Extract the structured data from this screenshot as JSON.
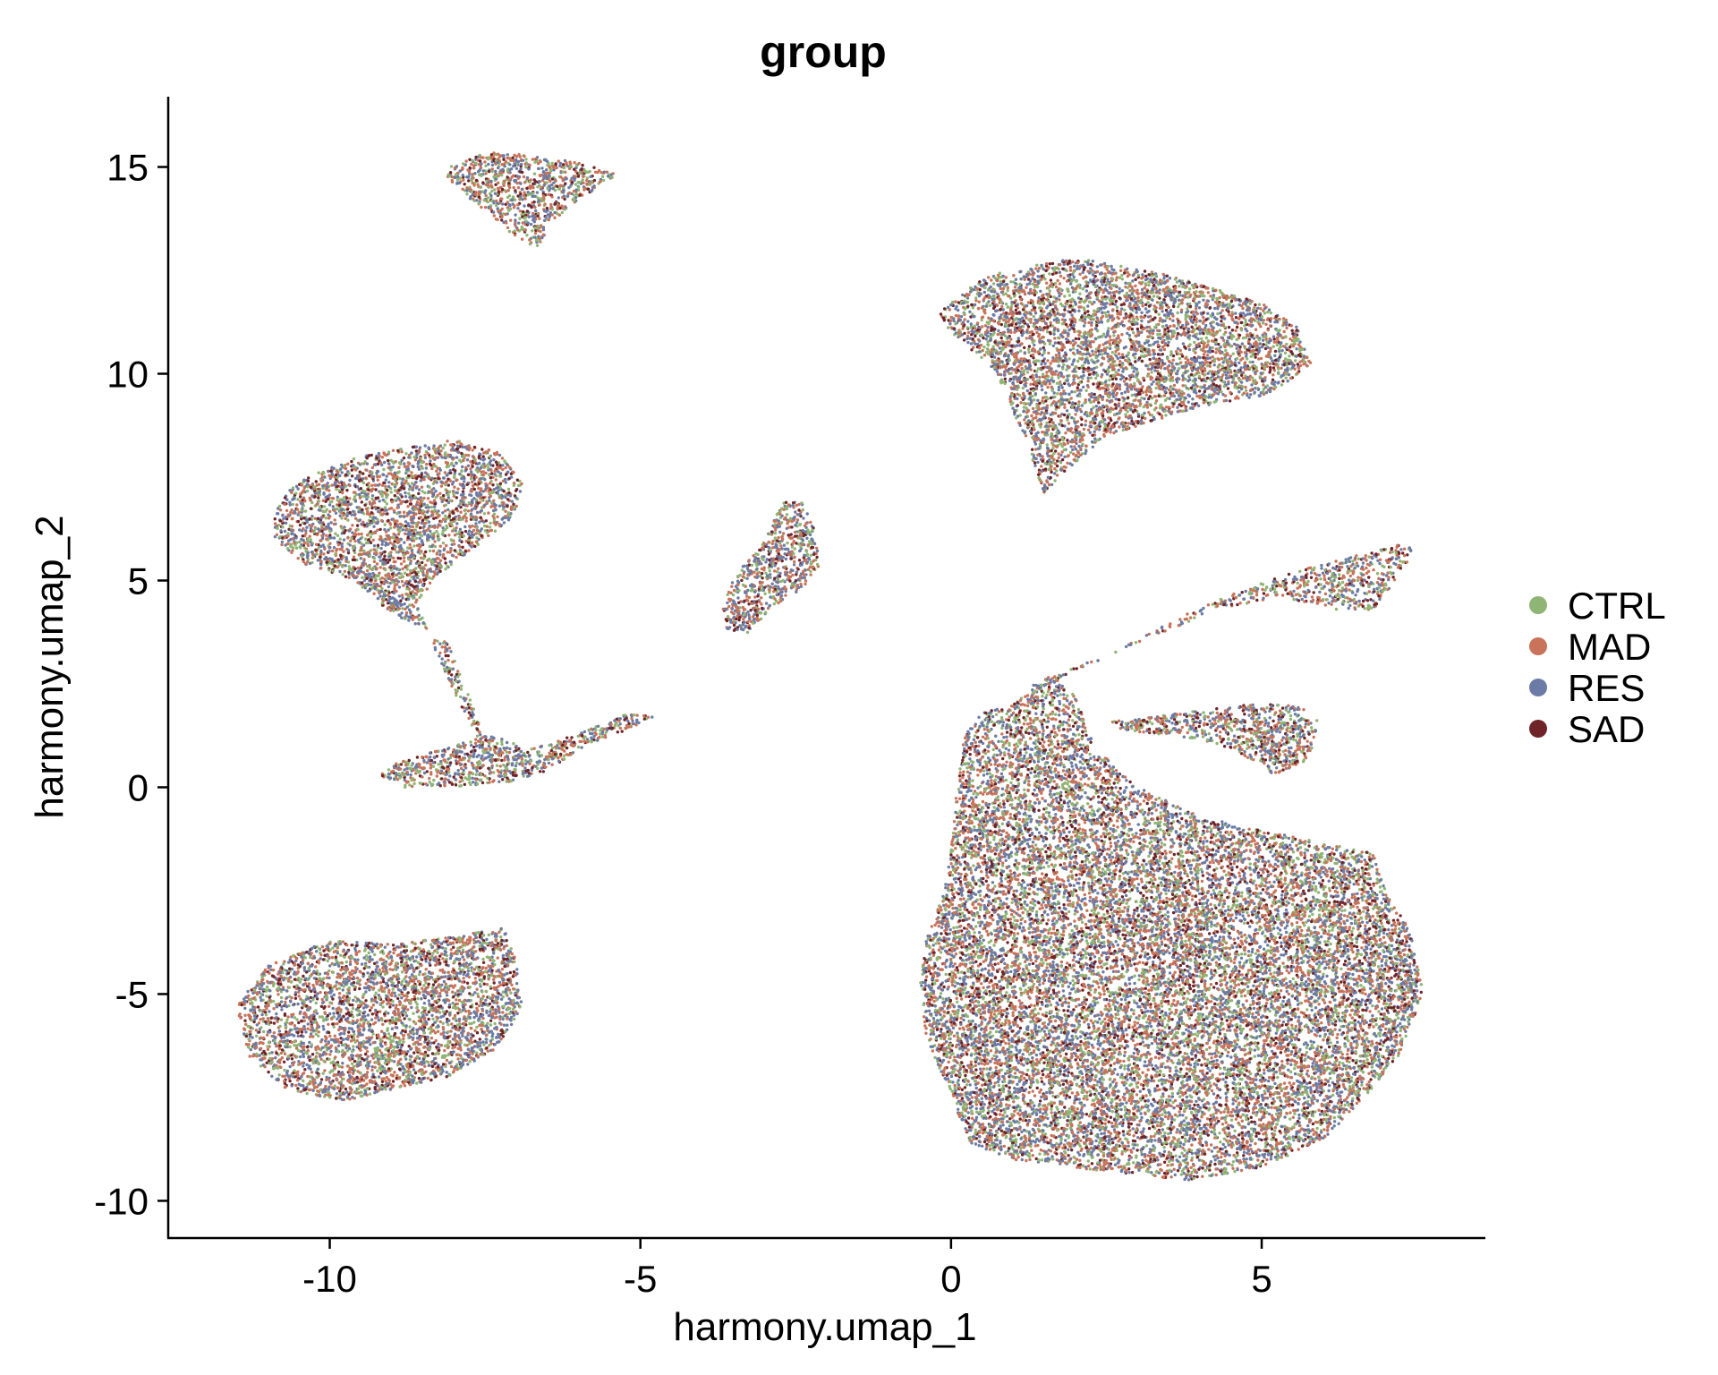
{
  "chart_data": {
    "type": "scatter",
    "title": "group",
    "xlabel": "harmony.umap_1",
    "ylabel": "harmony.umap_2",
    "xlim": [
      -12.6,
      8.6
    ],
    "ylim": [
      -10.9,
      16.7
    ],
    "xticks": [
      -10,
      -5,
      0,
      5
    ],
    "yticks": [
      -10,
      -5,
      0,
      5,
      10,
      15
    ],
    "xtick_labels": [
      "-10",
      "-5",
      "0",
      "5"
    ],
    "ytick_labels": [
      "-10",
      "-5",
      "0",
      "5",
      "10",
      "15"
    ],
    "grid": false,
    "legend_position": "right",
    "series": [
      {
        "name": "CTRL",
        "color": "#8FB574"
      },
      {
        "name": "MAD",
        "color": "#C8735A"
      },
      {
        "name": "RES",
        "color": "#6B7BA5"
      },
      {
        "name": "SAD",
        "color": "#6E2428"
      }
    ],
    "clusters": [
      {
        "id": "top-small",
        "polygon": [
          [
            -8.1,
            15.0
          ],
          [
            -7.5,
            15.35
          ],
          [
            -6.8,
            15.3
          ],
          [
            -6.0,
            15.1
          ],
          [
            -5.3,
            14.8
          ],
          [
            -5.9,
            14.3
          ],
          [
            -6.5,
            13.6
          ],
          [
            -6.6,
            13.0
          ],
          [
            -7.0,
            13.3
          ],
          [
            -7.4,
            13.8
          ],
          [
            -7.8,
            14.3
          ],
          [
            -8.1,
            14.7
          ]
        ]
      },
      {
        "id": "top-right-fan",
        "polygon": [
          [
            -0.2,
            11.5
          ],
          [
            0.6,
            12.4
          ],
          [
            2.0,
            12.8
          ],
          [
            3.5,
            12.4
          ],
          [
            5.0,
            11.7
          ],
          [
            5.6,
            11.1
          ],
          [
            5.8,
            10.2
          ],
          [
            5.1,
            9.5
          ],
          [
            4.0,
            9.2
          ],
          [
            2.5,
            8.5
          ],
          [
            1.8,
            7.6
          ],
          [
            1.5,
            7.1
          ],
          [
            1.2,
            8.4
          ],
          [
            0.7,
            10.1
          ],
          [
            0.0,
            11.0
          ]
        ]
      },
      {
        "id": "left-upper",
        "polygon": [
          [
            -10.9,
            6.6
          ],
          [
            -10.6,
            7.3
          ],
          [
            -9.8,
            7.9
          ],
          [
            -8.8,
            8.2
          ],
          [
            -8.0,
            8.4
          ],
          [
            -7.3,
            8.1
          ],
          [
            -6.9,
            7.4
          ],
          [
            -7.0,
            6.6
          ],
          [
            -7.5,
            6.0
          ],
          [
            -8.2,
            5.2
          ],
          [
            -8.6,
            4.5
          ],
          [
            -8.4,
            3.8
          ],
          [
            -9.0,
            4.2
          ],
          [
            -9.6,
            5.0
          ],
          [
            -10.4,
            5.4
          ],
          [
            -10.9,
            6.0
          ]
        ]
      },
      {
        "id": "left-bridge",
        "polygon": [
          [
            -8.4,
            3.6
          ],
          [
            -8.1,
            3.5
          ],
          [
            -7.5,
            1.2
          ],
          [
            -7.1,
            0.6
          ],
          [
            -7.4,
            0.6
          ],
          [
            -7.9,
            2.0
          ]
        ]
      },
      {
        "id": "left-middle",
        "polygon": [
          [
            -9.2,
            0.3
          ],
          [
            -8.8,
            0.7
          ],
          [
            -8.0,
            1.0
          ],
          [
            -7.4,
            1.3
          ],
          [
            -6.8,
            0.9
          ],
          [
            -6.0,
            1.3
          ],
          [
            -5.2,
            1.8
          ],
          [
            -4.8,
            1.7
          ],
          [
            -5.2,
            1.4
          ],
          [
            -5.9,
            1.0
          ],
          [
            -6.5,
            0.4
          ],
          [
            -7.2,
            0.1
          ],
          [
            -8.0,
            0.0
          ],
          [
            -8.8,
            0.0
          ]
        ]
      },
      {
        "id": "center-small",
        "polygon": [
          [
            -3.7,
            4.3
          ],
          [
            -3.5,
            5.2
          ],
          [
            -3.1,
            5.7
          ],
          [
            -2.9,
            6.3
          ],
          [
            -2.7,
            6.9
          ],
          [
            -2.4,
            6.9
          ],
          [
            -2.2,
            6.3
          ],
          [
            -2.1,
            5.4
          ],
          [
            -2.4,
            4.8
          ],
          [
            -2.9,
            4.3
          ],
          [
            -3.3,
            3.7
          ],
          [
            -3.6,
            3.8
          ]
        ]
      },
      {
        "id": "bottom-left",
        "polygon": [
          [
            -11.5,
            -5.3
          ],
          [
            -11.0,
            -4.3
          ],
          [
            -10.0,
            -3.7
          ],
          [
            -9.0,
            -3.8
          ],
          [
            -8.0,
            -3.6
          ],
          [
            -7.2,
            -3.4
          ],
          [
            -7.0,
            -4.2
          ],
          [
            -6.9,
            -5.3
          ],
          [
            -7.3,
            -6.3
          ],
          [
            -8.1,
            -7.0
          ],
          [
            -9.0,
            -7.3
          ],
          [
            -9.8,
            -7.6
          ],
          [
            -10.7,
            -7.3
          ],
          [
            -11.3,
            -6.5
          ]
        ]
      },
      {
        "id": "right-streak",
        "polygon": [
          [
            1.2,
            2.4
          ],
          [
            2.5,
            3.2
          ],
          [
            4.2,
            4.5
          ],
          [
            5.5,
            5.2
          ],
          [
            6.5,
            5.6
          ],
          [
            7.3,
            5.9
          ],
          [
            7.5,
            5.8
          ],
          [
            7.2,
            5.1
          ],
          [
            6.8,
            4.3
          ],
          [
            6.2,
            4.3
          ],
          [
            5.3,
            4.6
          ],
          [
            4.3,
            4.3
          ],
          [
            3.0,
            3.5
          ],
          [
            2.0,
            2.8
          ],
          [
            1.5,
            2.3
          ]
        ]
      },
      {
        "id": "right-blob",
        "polygon": [
          [
            2.6,
            1.6
          ],
          [
            3.7,
            1.8
          ],
          [
            4.8,
            2.0
          ],
          [
            5.6,
            2.0
          ],
          [
            5.9,
            1.6
          ],
          [
            5.8,
            0.7
          ],
          [
            5.2,
            0.3
          ],
          [
            4.8,
            0.7
          ],
          [
            4.2,
            1.1
          ],
          [
            3.3,
            1.3
          ],
          [
            2.6,
            1.4
          ]
        ]
      },
      {
        "id": "big-main",
        "polygon": [
          [
            1.0,
            2.0
          ],
          [
            1.6,
            2.7
          ],
          [
            2.0,
            2.2
          ],
          [
            2.3,
            1.0
          ],
          [
            3.0,
            0.0
          ],
          [
            4.0,
            -0.7
          ],
          [
            5.5,
            -1.2
          ],
          [
            6.8,
            -1.6
          ],
          [
            7.0,
            -2.5
          ],
          [
            7.4,
            -3.5
          ],
          [
            7.6,
            -5.0
          ],
          [
            7.2,
            -6.5
          ],
          [
            6.6,
            -7.6
          ],
          [
            6.0,
            -8.5
          ],
          [
            5.0,
            -9.2
          ],
          [
            3.8,
            -9.5
          ],
          [
            2.5,
            -9.3
          ],
          [
            1.0,
            -9.0
          ],
          [
            0.3,
            -8.6
          ],
          [
            0.0,
            -7.5
          ],
          [
            -0.4,
            -6.0
          ],
          [
            -0.5,
            -4.8
          ],
          [
            -0.4,
            -3.7
          ],
          [
            -0.1,
            -2.5
          ],
          [
            0.0,
            -1.3
          ],
          [
            0.1,
            0.0
          ],
          [
            0.2,
            1.2
          ],
          [
            0.5,
            1.8
          ]
        ]
      }
    ]
  }
}
